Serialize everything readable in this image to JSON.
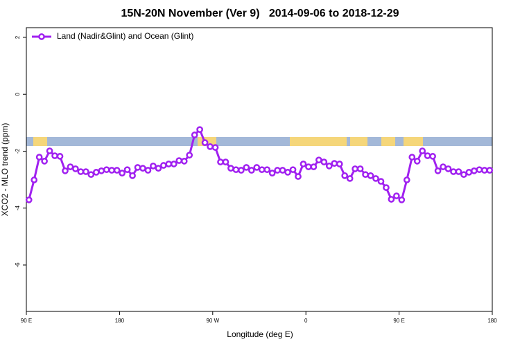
{
  "chart_data": {
    "type": "line",
    "title": "15N-20N November (Ver 9)   2014-09-06 to 2018-12-29",
    "x_label": "Longitude (deg E)",
    "y_label": "XCO2 - MLO trend (ppm)",
    "xlim": [
      90,
      540
    ],
    "xticks": [
      {
        "value": 90,
        "label": "90 E"
      },
      180,
      {
        "value": 270,
        "label": "90 W"
      },
      {
        "value": 360,
        "label": "0"
      },
      {
        "value": 450,
        "label": "90 E"
      },
      {
        "value": 540,
        "label": "180"
      }
    ],
    "ylim": [
      -7.63,
      2.34
    ],
    "yticks": [
      2,
      0,
      -2,
      -4,
      -6
    ],
    "legend_position": "top-left",
    "x": [
      92.5,
      97.5,
      102.5,
      107.5,
      112.5,
      117.5,
      122.5,
      127.5,
      132.5,
      137.5,
      142.5,
      147.5,
      152.5,
      157.5,
      162.5,
      167.5,
      172.5,
      177.5,
      182.5,
      187.5,
      192.5,
      197.5,
      202.5,
      207.5,
      212.5,
      217.5,
      222.5,
      227.5,
      232.5,
      237.5,
      242.5,
      247.5,
      252.5,
      257.5,
      262.5,
      267.5,
      272.5,
      277.5,
      282.5,
      287.5,
      292.5,
      297.5,
      302.5,
      307.5,
      312.5,
      317.5,
      322.5,
      327.5,
      332.5,
      337.5,
      342.5,
      347.5,
      352.5,
      357.5,
      362.5,
      367.5,
      372.5,
      377.5,
      382.5,
      387.5,
      392.5,
      397.5,
      402.5,
      407.5,
      412.5,
      417.5,
      422.5,
      427.5,
      432.5,
      437.5,
      442.5,
      447.5,
      452.5,
      457.5,
      462.5,
      467.5,
      472.5,
      477.5,
      482.5,
      487.5,
      492.5,
      497.5,
      502.5,
      507.5,
      512.5,
      517.5,
      522.5,
      527.5,
      532.5,
      537.5
    ],
    "series": [
      {
        "name": "Land (Nadir&Glint) and Ocean (Glint)",
        "color": "#a020f0",
        "values": [
          -3.71,
          -3.01,
          -2.21,
          -2.35,
          -1.99,
          -2.16,
          -2.18,
          -2.69,
          -2.55,
          -2.62,
          -2.72,
          -2.72,
          -2.82,
          -2.74,
          -2.69,
          -2.65,
          -2.67,
          -2.67,
          -2.77,
          -2.65,
          -2.86,
          -2.57,
          -2.6,
          -2.67,
          -2.52,
          -2.6,
          -2.5,
          -2.45,
          -2.45,
          -2.33,
          -2.35,
          -2.14,
          -1.43,
          -1.24,
          -1.7,
          -1.84,
          -1.87,
          -2.38,
          -2.38,
          -2.6,
          -2.65,
          -2.67,
          -2.57,
          -2.67,
          -2.57,
          -2.65,
          -2.65,
          -2.77,
          -2.67,
          -2.67,
          -2.74,
          -2.65,
          -2.89,
          -2.45,
          -2.55,
          -2.55,
          -2.31,
          -2.38,
          -2.52,
          -2.43,
          -2.45,
          -2.86,
          -2.96,
          -2.62,
          -2.62,
          -2.82,
          -2.86,
          -2.96,
          -3.06,
          -3.28,
          -3.69,
          -3.57,
          -3.71,
          -3.01,
          -2.21,
          -2.35,
          -1.99,
          -2.16,
          -2.18,
          -2.69,
          -2.55,
          -2.62,
          -2.72,
          -2.72,
          -2.82,
          -2.74,
          -2.69,
          -2.65,
          -2.67,
          -2.67
        ]
      }
    ]
  }
}
